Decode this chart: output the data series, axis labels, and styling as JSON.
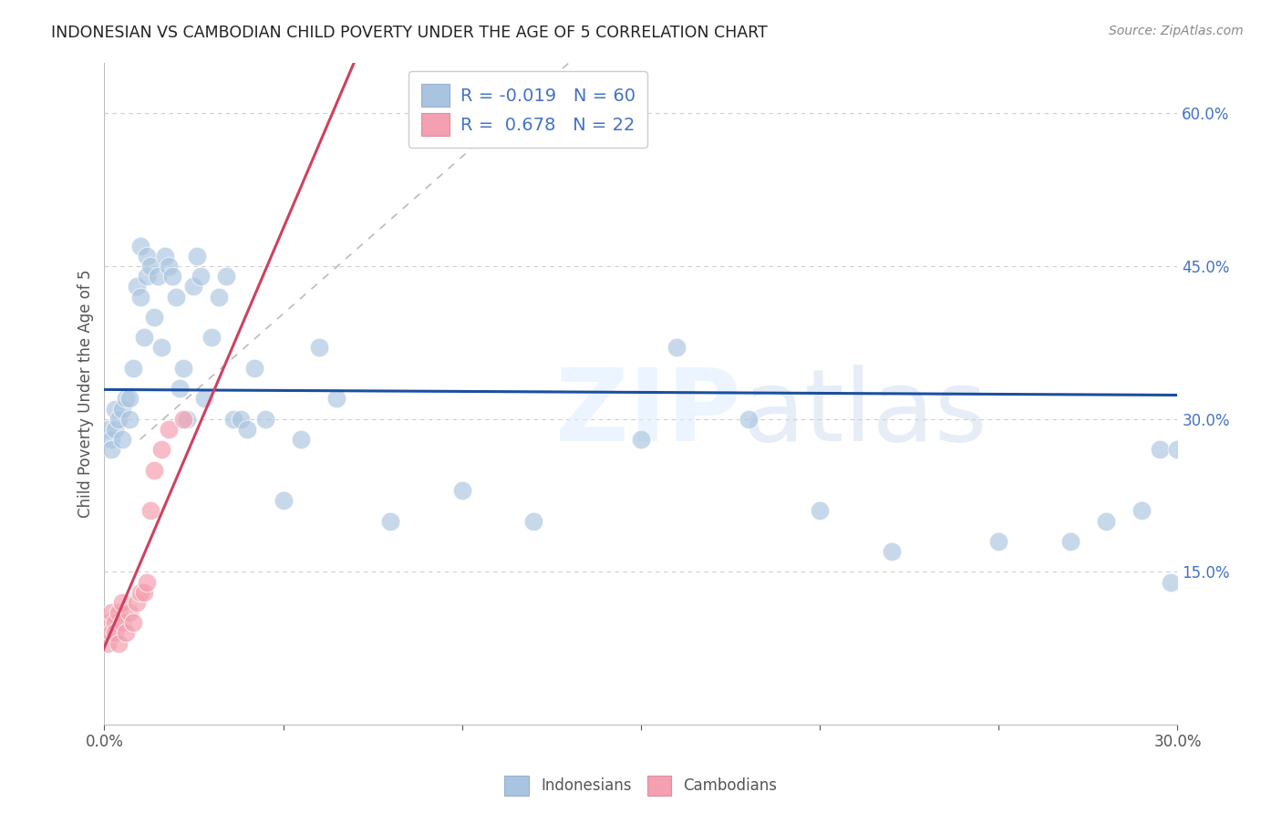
{
  "title": "INDONESIAN VS CAMBODIAN CHILD POVERTY UNDER THE AGE OF 5 CORRELATION CHART",
  "source": "Source: ZipAtlas.com",
  "ylabel": "Child Poverty Under the Age of 5",
  "xlim": [
    0.0,
    0.3
  ],
  "ylim": [
    0.0,
    0.65
  ],
  "xticks": [
    0.0,
    0.05,
    0.1,
    0.15,
    0.2,
    0.25,
    0.3
  ],
  "xtick_labels": [
    "0.0%",
    "",
    "",
    "",
    "",
    "",
    "30.0%"
  ],
  "ytick_labels_right": [
    "60.0%",
    "45.0%",
    "30.0%",
    "15.0%"
  ],
  "ytick_vals_right": [
    0.6,
    0.45,
    0.3,
    0.15
  ],
  "R_blue": -0.019,
  "N_blue": 60,
  "R_pink": 0.678,
  "N_pink": 22,
  "blue_color": "#a8c4e0",
  "pink_color": "#f4a0b0",
  "blue_line_color": "#1a4fa0",
  "pink_line_color": "#d04060",
  "legend_labels": [
    "Indonesians",
    "Cambodians"
  ],
  "indo_x": [
    0.001,
    0.002,
    0.002,
    0.003,
    0.003,
    0.004,
    0.005,
    0.005,
    0.006,
    0.007,
    0.007,
    0.008,
    0.009,
    0.01,
    0.01,
    0.011,
    0.012,
    0.012,
    0.013,
    0.014,
    0.015,
    0.016,
    0.017,
    0.018,
    0.019,
    0.02,
    0.021,
    0.022,
    0.023,
    0.025,
    0.026,
    0.027,
    0.028,
    0.03,
    0.032,
    0.034,
    0.036,
    0.038,
    0.04,
    0.042,
    0.045,
    0.05,
    0.055,
    0.06,
    0.065,
    0.08,
    0.1,
    0.12,
    0.15,
    0.16,
    0.18,
    0.2,
    0.22,
    0.25,
    0.27,
    0.28,
    0.29,
    0.295,
    0.298,
    0.3
  ],
  "indo_y": [
    0.29,
    0.28,
    0.27,
    0.31,
    0.29,
    0.3,
    0.31,
    0.28,
    0.32,
    0.3,
    0.32,
    0.35,
    0.43,
    0.42,
    0.47,
    0.38,
    0.44,
    0.46,
    0.45,
    0.4,
    0.44,
    0.37,
    0.46,
    0.45,
    0.44,
    0.42,
    0.33,
    0.35,
    0.3,
    0.43,
    0.46,
    0.44,
    0.32,
    0.38,
    0.42,
    0.44,
    0.3,
    0.3,
    0.29,
    0.35,
    0.3,
    0.22,
    0.28,
    0.37,
    0.32,
    0.2,
    0.23,
    0.2,
    0.28,
    0.37,
    0.3,
    0.21,
    0.17,
    0.18,
    0.18,
    0.2,
    0.21,
    0.27,
    0.14,
    0.27
  ],
  "camb_x": [
    0.001,
    0.001,
    0.002,
    0.002,
    0.003,
    0.003,
    0.004,
    0.004,
    0.005,
    0.005,
    0.006,
    0.007,
    0.008,
    0.009,
    0.01,
    0.011,
    0.012,
    0.013,
    0.014,
    0.016,
    0.018,
    0.022
  ],
  "camb_y": [
    0.08,
    0.1,
    0.09,
    0.11,
    0.1,
    0.09,
    0.08,
    0.11,
    0.1,
    0.12,
    0.09,
    0.11,
    0.1,
    0.12,
    0.13,
    0.13,
    0.14,
    0.21,
    0.25,
    0.27,
    0.29,
    0.3
  ],
  "grid_color": "#cccccc",
  "spine_color": "#bbbbbb",
  "text_color": "#555555",
  "right_tick_color": "#4472c4",
  "source_color": "#888888"
}
